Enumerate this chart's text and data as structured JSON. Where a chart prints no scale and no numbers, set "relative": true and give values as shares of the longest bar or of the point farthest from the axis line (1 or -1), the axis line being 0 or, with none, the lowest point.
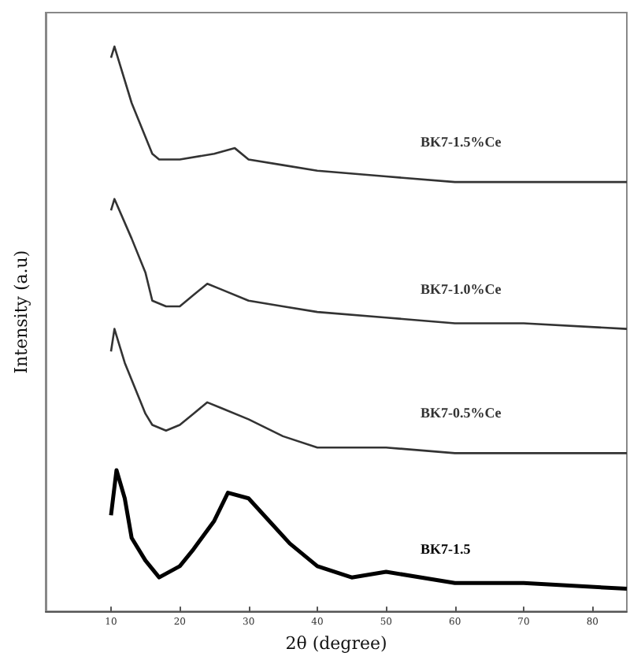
{
  "chart_data": {
    "type": "line",
    "relative": true,
    "xlabel": "2θ (degree)",
    "ylabel": "Intensity (a.u)",
    "xlim": [
      0.5,
      85
    ],
    "xticks": [
      10,
      20,
      30,
      40,
      50,
      60,
      70,
      80
    ],
    "grid": false,
    "legend": false,
    "marker": "none",
    "line_style": "solid",
    "series": [
      {
        "name": "BK7-1.5%Ce",
        "color": "#333333",
        "x": [
          10,
          10.5,
          13,
          15,
          16,
          17,
          20,
          25,
          28,
          30,
          35,
          40,
          50,
          60,
          70,
          80,
          85
        ],
        "values": [
          0.98,
          1.0,
          0.9,
          0.84,
          0.81,
          0.8,
          0.8,
          0.81,
          0.82,
          0.8,
          0.79,
          0.78,
          0.77,
          0.76,
          0.76,
          0.76,
          0.76
        ]
      },
      {
        "name": "BK7-1.0%Ce",
        "color": "#333333",
        "x": [
          10,
          10.5,
          13,
          15,
          16,
          18,
          20,
          22,
          24,
          26,
          30,
          35,
          40,
          50,
          60,
          70,
          85
        ],
        "values": [
          0.71,
          0.73,
          0.66,
          0.6,
          0.55,
          0.54,
          0.54,
          0.56,
          0.58,
          0.57,
          0.55,
          0.54,
          0.53,
          0.52,
          0.51,
          0.51,
          0.5
        ]
      },
      {
        "name": "BK7-0.5%Ce",
        "color": "#333333",
        "x": [
          10,
          10.5,
          12,
          14,
          15,
          16,
          18,
          20,
          22,
          24,
          26,
          30,
          35,
          40,
          50,
          60,
          70,
          85
        ],
        "values": [
          0.46,
          0.5,
          0.44,
          0.38,
          0.35,
          0.33,
          0.32,
          0.33,
          0.35,
          0.37,
          0.36,
          0.34,
          0.31,
          0.29,
          0.29,
          0.28,
          0.28,
          0.28
        ]
      },
      {
        "name": "BK7-1.5",
        "color": "#000000",
        "x": [
          10,
          10.8,
          12,
          13,
          15,
          17,
          20,
          22,
          25,
          27,
          30,
          33,
          36,
          40,
          45,
          50,
          60,
          70,
          85
        ],
        "values": [
          0.17,
          0.25,
          0.2,
          0.13,
          0.09,
          0.06,
          0.08,
          0.11,
          0.16,
          0.21,
          0.2,
          0.16,
          0.12,
          0.08,
          0.06,
          0.07,
          0.05,
          0.05,
          0.04
        ]
      }
    ]
  }
}
